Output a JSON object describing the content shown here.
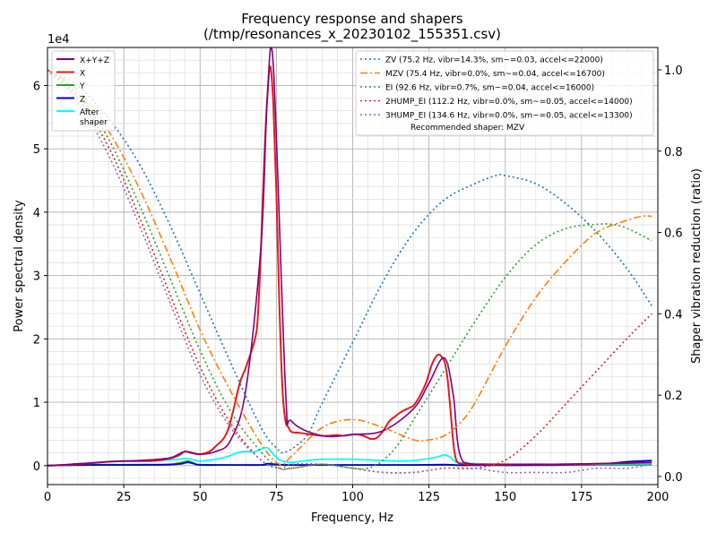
{
  "chart_data": {
    "type": "line",
    "title": "Frequency response and shapers",
    "subtitle": "(/tmp/resonances_x_20230102_155351.csv)",
    "xlabel": "Frequency, Hz",
    "ylabel": "Power spectral density",
    "y2label": "Shaper vibration reduction (ratio)",
    "y_offset_label": "1e4",
    "xlim": [
      0,
      200
    ],
    "ylim": [
      -3000,
      66000
    ],
    "y2lim": [
      -0.02,
      1.055
    ],
    "grid": true,
    "x_ticks": [
      "0",
      "25",
      "50",
      "75",
      "100",
      "125",
      "150",
      "175",
      "200"
    ],
    "y_ticks": [
      "0",
      "1",
      "2",
      "3",
      "4",
      "5",
      "6"
    ],
    "y2_ticks": [
      "0.0",
      "0.2",
      "0.4",
      "0.6",
      "0.8",
      "1.0"
    ],
    "legend_left_position": "upper-left",
    "legend_right_position": "upper-right",
    "psd_series": [
      {
        "name": "X+Y+Z",
        "color": "#800080",
        "x": [
          0,
          5,
          10,
          20,
          30,
          40,
          45,
          50,
          55,
          60,
          65,
          70,
          72,
          74,
          78,
          80,
          90,
          100,
          110,
          120,
          125,
          130,
          133,
          135,
          140,
          160,
          180,
          198
        ],
        "y": [
          0,
          100,
          300,
          600,
          800,
          1200,
          2200,
          1800,
          2200,
          4000,
          12000,
          35000,
          58000,
          63000,
          12000,
          7000,
          4700,
          4900,
          5500,
          9000,
          13000,
          17000,
          11000,
          2000,
          200,
          200,
          300,
          500
        ]
      },
      {
        "name": "X",
        "color": "#e41a1c",
        "x": [
          0,
          5,
          10,
          15,
          20,
          25,
          30,
          35,
          40,
          43,
          45,
          47,
          50,
          53,
          55,
          58,
          60,
          63,
          65,
          68,
          69,
          70,
          71,
          72,
          73,
          74,
          75,
          76,
          77,
          78,
          79,
          80,
          82,
          85,
          88,
          90,
          92,
          95,
          97,
          100,
          102,
          104,
          106,
          108,
          110,
          112,
          114,
          116,
          118,
          120,
          122,
          124,
          126,
          128,
          130,
          131,
          132,
          133,
          134,
          136,
          140,
          150,
          160,
          170,
          180,
          190,
          198
        ],
        "y": [
          0,
          100,
          250,
          400,
          600,
          700,
          700,
          750,
          1100,
          1600,
          2200,
          2000,
          1800,
          2200,
          3000,
          4500,
          7000,
          13000,
          15500,
          20000,
          24000,
          35000,
          48000,
          58000,
          63000,
          57000,
          43000,
          25000,
          12000,
          7000,
          6000,
          5300,
          5200,
          5000,
          4800,
          4700,
          4700,
          4800,
          4700,
          4900,
          4900,
          4600,
          4200,
          4400,
          5500,
          7000,
          7800,
          8500,
          9000,
          9500,
          11000,
          13000,
          16000,
          17500,
          16500,
          14000,
          9000,
          3500,
          800,
          300,
          200,
          200,
          200,
          200,
          300,
          400,
          500
        ]
      },
      {
        "name": "Y",
        "color": "#2ca02c",
        "x": [
          0,
          10,
          20,
          30,
          40,
          44,
          46,
          48,
          50,
          60,
          70,
          80,
          100,
          120,
          140,
          160,
          180,
          198
        ],
        "y": [
          0,
          100,
          150,
          150,
          200,
          500,
          700,
          400,
          150,
          100,
          100,
          100,
          100,
          100,
          100,
          100,
          100,
          150
        ]
      },
      {
        "name": "Z",
        "color": "#0000cd",
        "x": [
          0,
          10,
          20,
          30,
          40,
          44,
          46,
          48,
          50,
          60,
          70,
          72,
          75,
          80,
          100,
          120,
          130,
          133,
          135,
          140,
          160,
          180,
          190,
          198
        ],
        "y": [
          0,
          80,
          100,
          100,
          150,
          300,
          500,
          300,
          100,
          100,
          100,
          300,
          200,
          100,
          100,
          100,
          150,
          100,
          50,
          50,
          50,
          200,
          600,
          800
        ]
      },
      {
        "name": "After shaper",
        "color": "#00ffff",
        "x": [
          0,
          5,
          10,
          15,
          20,
          25,
          30,
          35,
          40,
          43,
          45,
          47,
          50,
          52,
          55,
          58,
          60,
          62,
          64,
          66,
          68,
          70,
          72,
          74,
          76,
          78,
          80,
          85,
          90,
          95,
          100,
          105,
          110,
          115,
          120,
          125,
          128,
          130,
          132,
          134,
          136,
          140,
          150,
          160,
          170,
          180,
          190,
          198
        ],
        "y": [
          0,
          100,
          250,
          400,
          600,
          700,
          700,
          750,
          900,
          1000,
          1100,
          1000,
          700,
          800,
          1000,
          1300,
          1600,
          2000,
          2200,
          2200,
          2200,
          2600,
          2800,
          1800,
          900,
          600,
          500,
          800,
          1000,
          1000,
          1000,
          900,
          800,
          700,
          800,
          1100,
          1400,
          1700,
          1300,
          500,
          400,
          300,
          200,
          200,
          200,
          200,
          300,
          300
        ]
      }
    ],
    "shaper_series": [
      {
        "name": "ZV (75.2 Hz, vibr=14.3%, sm~=0.03, accel<=22000)",
        "color": "#1f77b4",
        "dash": "2,3",
        "x": [
          0,
          10,
          20,
          30,
          40,
          50,
          60,
          70,
          75,
          78,
          85,
          90,
          100,
          110,
          120,
          130,
          140,
          147,
          150,
          160,
          170,
          180,
          190,
          198
        ],
        "y": [
          1.0,
          0.96,
          0.88,
          0.77,
          0.62,
          0.45,
          0.28,
          0.12,
          0.07,
          0.06,
          0.1,
          0.18,
          0.33,
          0.48,
          0.6,
          0.68,
          0.72,
          0.74,
          0.74,
          0.72,
          0.67,
          0.6,
          0.51,
          0.42
        ]
      },
      {
        "name": "MZV (75.4 Hz, vibr=0.0%, sm~=0.04, accel<=16700)",
        "color": "#ff7f0e",
        "dash": "8,3,2,3",
        "x": [
          0,
          10,
          20,
          30,
          40,
          50,
          60,
          70,
          76,
          80,
          90,
          100,
          110,
          120,
          125,
          130,
          135,
          140,
          150,
          160,
          170,
          180,
          190,
          195,
          198
        ],
        "y": [
          1.0,
          0.95,
          0.85,
          0.71,
          0.54,
          0.36,
          0.21,
          0.08,
          0.03,
          0.05,
          0.12,
          0.14,
          0.12,
          0.09,
          0.09,
          0.1,
          0.13,
          0.18,
          0.32,
          0.44,
          0.53,
          0.6,
          0.63,
          0.64,
          0.64
        ]
      },
      {
        "name": "EI (92.6 Hz, vibr=0.7%, sm~=0.04, accel<=16000)",
        "color": "#2ca02c",
        "dash": "2,3",
        "x": [
          0,
          10,
          20,
          30,
          40,
          50,
          60,
          70,
          76,
          80,
          90,
          100,
          105,
          110,
          115,
          120,
          130,
          140,
          150,
          160,
          170,
          180,
          185,
          190,
          198
        ],
        "y": [
          1.0,
          0.94,
          0.83,
          0.67,
          0.49,
          0.31,
          0.16,
          0.06,
          0.02,
          0.02,
          0.03,
          0.02,
          0.02,
          0.04,
          0.08,
          0.14,
          0.26,
          0.38,
          0.49,
          0.57,
          0.61,
          0.62,
          0.62,
          0.61,
          0.58
        ]
      },
      {
        "name": "2HUMP_EI (112.2 Hz, vibr=0.0%, sm~=0.05, accel<=14000)",
        "color": "#d62728",
        "dash": "2,3",
        "x": [
          0,
          10,
          20,
          30,
          40,
          50,
          60,
          70,
          76,
          80,
          90,
          100,
          110,
          120,
          130,
          140,
          150,
          160,
          170,
          180,
          190,
          198
        ],
        "y": [
          1.0,
          0.93,
          0.81,
          0.64,
          0.45,
          0.27,
          0.13,
          0.04,
          0.02,
          0.02,
          0.03,
          0.02,
          0.01,
          0.01,
          0.02,
          0.02,
          0.04,
          0.1,
          0.18,
          0.26,
          0.34,
          0.4
        ]
      },
      {
        "name": "3HUMP_EI (134.6 Hz, vibr=0.0%, sm~=0.05, accel<=13300)",
        "color": "#9467bd",
        "dash": "2,3",
        "x": [
          0,
          10,
          20,
          30,
          40,
          50,
          60,
          70,
          76,
          80,
          90,
          100,
          110,
          120,
          130,
          140,
          150,
          160,
          170,
          180,
          190,
          198
        ],
        "y": [
          1.0,
          0.92,
          0.79,
          0.62,
          0.43,
          0.25,
          0.12,
          0.04,
          0.02,
          0.03,
          0.03,
          0.02,
          0.01,
          0.01,
          0.02,
          0.02,
          0.01,
          0.01,
          0.01,
          0.02,
          0.02,
          0.03
        ]
      }
    ],
    "recommendation": "Recommended shaper: MZV"
  }
}
